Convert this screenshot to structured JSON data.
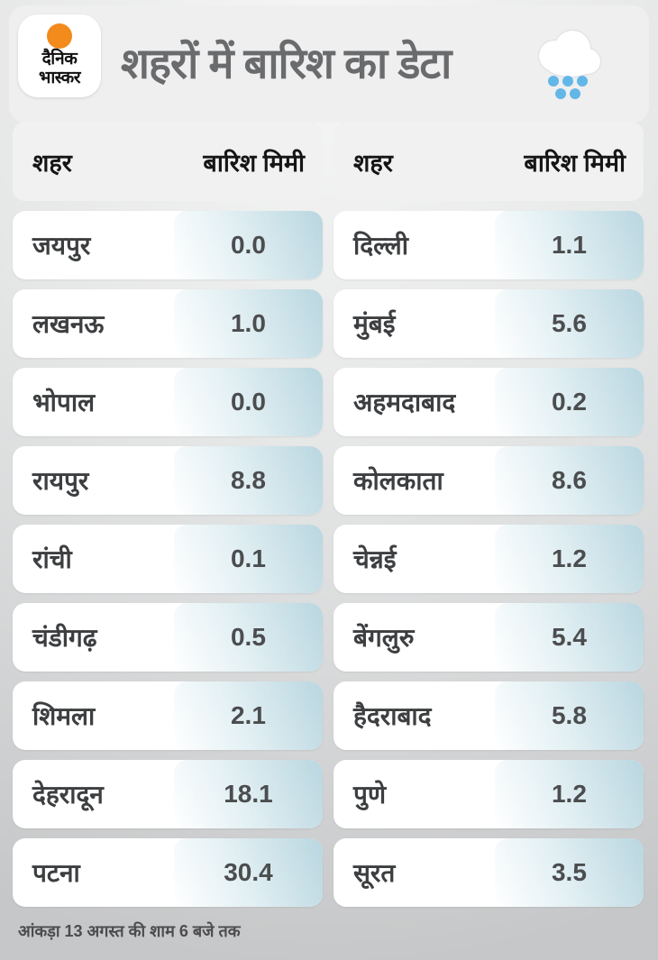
{
  "header": {
    "logo": {
      "line1": "दैनिक",
      "line2": "भास्कर"
    },
    "title": "शहरों में बारिश का डेटा"
  },
  "col_headers": {
    "city": "शहर",
    "rain": "बारिश मिमी"
  },
  "tables": {
    "left": {
      "rows": [
        {
          "city": "जयपुर",
          "value": "0.0"
        },
        {
          "city": "लखनऊ",
          "value": "1.0"
        },
        {
          "city": "भोपाल",
          "value": "0.0"
        },
        {
          "city": "रायपुर",
          "value": "8.8"
        },
        {
          "city": "रांची",
          "value": "0.1"
        },
        {
          "city": "चंडीगढ़",
          "value": "0.5"
        },
        {
          "city": "शिमला",
          "value": "2.1"
        },
        {
          "city": "देहरादून",
          "value": "18.1"
        },
        {
          "city": "पटना",
          "value": "30.4"
        }
      ]
    },
    "right": {
      "rows": [
        {
          "city": "दिल्ली",
          "value": "1.1"
        },
        {
          "city": "मुंबई",
          "value": "5.6"
        },
        {
          "city": "अहमदाबाद",
          "value": "0.2"
        },
        {
          "city": "कोलकाता",
          "value": "8.6"
        },
        {
          "city": "चेन्नई",
          "value": "1.2"
        },
        {
          "city": "बेंगलुरु",
          "value": "5.4"
        },
        {
          "city": "हैदराबाद",
          "value": "5.8"
        },
        {
          "city": "पुणे",
          "value": "1.2"
        },
        {
          "city": "सूरत",
          "value": "3.5"
        }
      ]
    }
  },
  "footer": {
    "note": "आंकड़ा 13 अगस्त की शाम 6 बजे तक"
  },
  "colors": {
    "header_band": "#efeff0",
    "card": "#ffffff",
    "value_gradient_end": "#b9d6e0",
    "logo_sun": "#f28a1c",
    "rain_drop": "#63b7e7",
    "title_text": "#6a6b6d"
  },
  "chart_data": {
    "type": "table",
    "title": "शहरों में बारिश का डेटा",
    "columns": [
      "शहर",
      "बारिश मिमी"
    ],
    "rows": [
      [
        "जयपुर",
        0.0
      ],
      [
        "लखनऊ",
        1.0
      ],
      [
        "भोपाल",
        0.0
      ],
      [
        "रायपुर",
        8.8
      ],
      [
        "रांची",
        0.1
      ],
      [
        "चंडीगढ़",
        0.5
      ],
      [
        "शिमला",
        2.1
      ],
      [
        "देहरादून",
        18.1
      ],
      [
        "पटना",
        30.4
      ],
      [
        "दिल्ली",
        1.1
      ],
      [
        "मुंबई",
        5.6
      ],
      [
        "अहमदाबाद",
        0.2
      ],
      [
        "कोलकाता",
        8.6
      ],
      [
        "चेन्नई",
        1.2
      ],
      [
        "बेंगलुरु",
        5.4
      ],
      [
        "हैदराबाद",
        5.8
      ],
      [
        "पुणे",
        1.2
      ],
      [
        "सूरत",
        3.5
      ]
    ],
    "note": "आंकड़ा 13 अगस्त की शाम 6 बजे तक",
    "layout": "two side-by-side table columns, 9 rows each"
  }
}
